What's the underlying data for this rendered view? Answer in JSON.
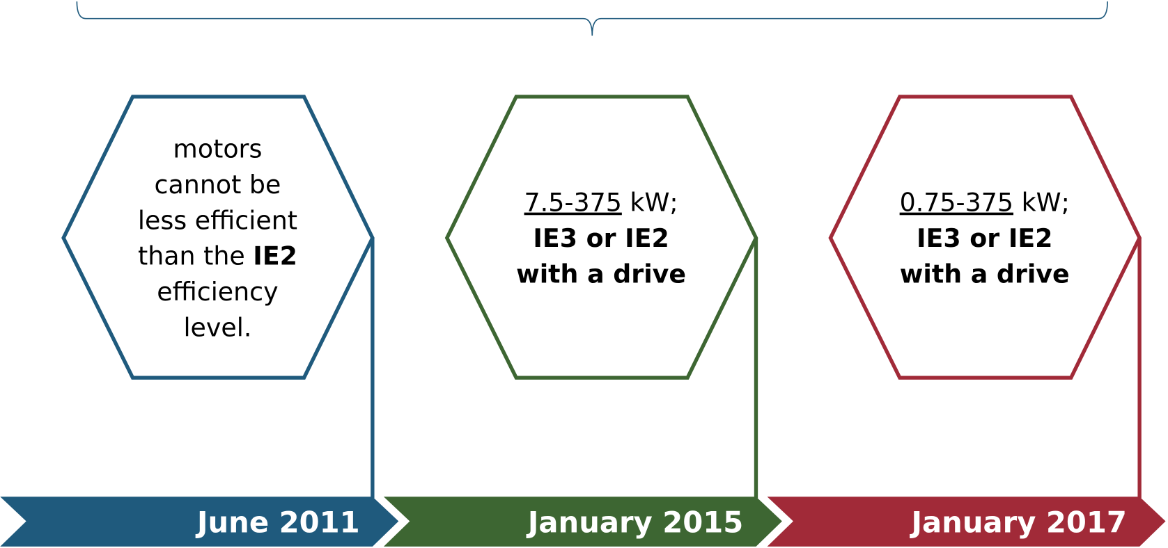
{
  "stages": [
    {
      "date": "June 2011",
      "color": "#1f5a7d",
      "lines": [
        [
          {
            "text": "motors"
          }
        ],
        [
          {
            "text": "cannot be"
          }
        ],
        [
          {
            "text": "less efficient"
          }
        ],
        [
          {
            "text": "than the "
          },
          {
            "text": "IE2",
            "bold": true
          }
        ],
        [
          {
            "text": "efficiency"
          }
        ],
        [
          {
            "text": "level."
          }
        ]
      ]
    },
    {
      "date": "January 2015",
      "color": "#3d6632",
      "lines": [
        [
          {
            "text": "7.5-375",
            "underline": true
          },
          {
            "text": " kW;"
          }
        ],
        [
          {
            "text": "IE3 or IE2",
            "bold": true
          }
        ],
        [
          {
            "text": "with a drive",
            "bold": true
          }
        ]
      ]
    },
    {
      "date": "January 2017",
      "color": "#a12a38",
      "lines": [
        [
          {
            "text": "0.75-375",
            "underline": true
          },
          {
            "text": " kW;"
          }
        ],
        [
          {
            "text": "IE3 or IE2",
            "bold": true
          }
        ],
        [
          {
            "text": "with a drive",
            "bold": true
          }
        ]
      ]
    }
  ]
}
